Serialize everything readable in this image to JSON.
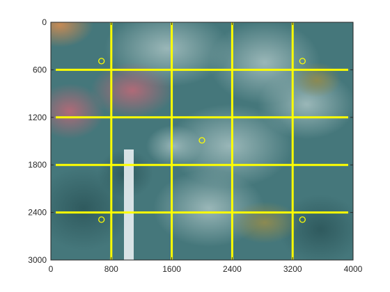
{
  "figure": {
    "x_ticks": [
      "0",
      "800",
      "1600",
      "2400",
      "3200",
      "4000"
    ],
    "y_ticks": [
      "0",
      "600",
      "1200",
      "1800",
      "2400",
      "3000"
    ],
    "x_range": [
      0,
      4000
    ],
    "y_range": [
      0,
      3000
    ],
    "y_reversed": true,
    "grid_lines_x": [
      800,
      1600,
      2400,
      3200
    ],
    "grid_lines_y": [
      600,
      1200,
      1800,
      2400
    ],
    "circle_markers": [
      {
        "x": 670,
        "y": 490
      },
      {
        "x": 3330,
        "y": 490
      },
      {
        "x": 2000,
        "y": 1490
      },
      {
        "x": 670,
        "y": 2490
      },
      {
        "x": 3330,
        "y": 2490
      }
    ],
    "colors": {
      "grid": "#ffff00",
      "marker": "#ffff00",
      "axis": "#262626"
    },
    "image_subject": "underwater coral reef photo with measuring ruler"
  }
}
